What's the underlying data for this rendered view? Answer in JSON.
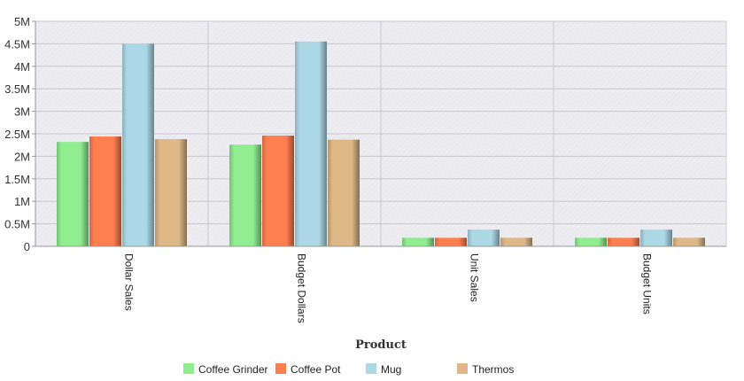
{
  "chart_data": {
    "type": "bar",
    "xlabel": "Product",
    "ylabel": "",
    "ylim": [
      0,
      5000000
    ],
    "y_ticks": [
      {
        "value": 0,
        "label": "0"
      },
      {
        "value": 500000,
        "label": "0.5M"
      },
      {
        "value": 1000000,
        "label": "1M"
      },
      {
        "value": 1500000,
        "label": "1.5M"
      },
      {
        "value": 2000000,
        "label": "2M"
      },
      {
        "value": 2500000,
        "label": "2.5M"
      },
      {
        "value": 3000000,
        "label": "3M"
      },
      {
        "value": 3500000,
        "label": "3.5M"
      },
      {
        "value": 4000000,
        "label": "4M"
      },
      {
        "value": 4500000,
        "label": "4.5M"
      },
      {
        "value": 5000000,
        "label": "5M"
      }
    ],
    "categories": [
      "Dollar Sales",
      "Budget Dollars",
      "Unit Sales",
      "Budget Units"
    ],
    "series": [
      {
        "name": "Coffee Grinder",
        "color": "#90EE90",
        "values": [
          2320000,
          2260000,
          190000,
          190000
        ]
      },
      {
        "name": "Coffee Pot",
        "color": "#FF7F50",
        "values": [
          2440000,
          2460000,
          190000,
          190000
        ]
      },
      {
        "name": "Mug",
        "color": "#ADD8E6",
        "values": [
          4500000,
          4550000,
          370000,
          370000
        ]
      },
      {
        "name": "Thermos",
        "color": "#DEB887",
        "values": [
          2380000,
          2370000,
          190000,
          190000
        ]
      }
    ],
    "grid": true,
    "legend_position": "bottom"
  }
}
